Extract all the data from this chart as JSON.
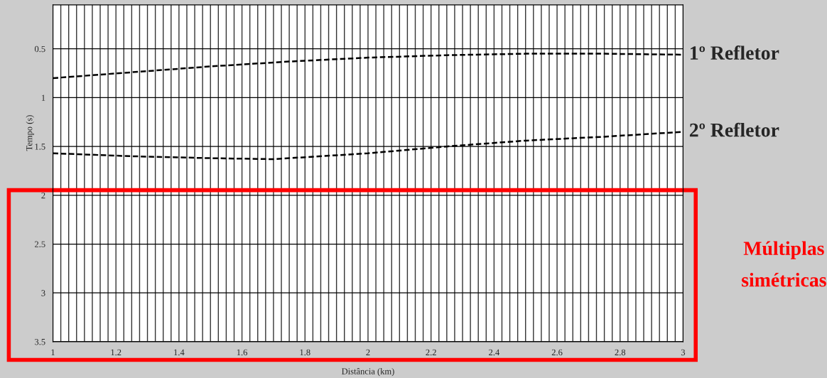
{
  "chart_data": {
    "type": "line",
    "xlabel": "Distância (km)",
    "ylabel": "Tempo (s)",
    "series": [
      {
        "color": "#000000",
        "x": [
          1,
          1.25,
          1.5,
          1.75,
          2,
          2.25,
          2.5,
          2.75,
          3
        ],
        "values": [
          0.8,
          0.74,
          0.68,
          0.63,
          0.59,
          0.565,
          0.55,
          0.55,
          0.56
        ]
      },
      {
        "color": "#000000",
        "x": [
          1,
          1.25,
          1.5,
          1.7,
          2,
          2.25,
          2.5,
          2.75,
          3
        ],
        "values": [
          1.57,
          1.6,
          1.62,
          1.63,
          1.57,
          1.5,
          1.44,
          1.4,
          1.35
        ]
      }
    ],
    "line_style": "dashed",
    "xlim": [
      1,
      3
    ],
    "ylim": [
      3.5,
      0.05
    ],
    "yticks": [
      0.5,
      1,
      1.5,
      2,
      2.5,
      3,
      3.5
    ],
    "xticks": [
      1,
      {
        "value": 1.025,
        "label": null
      },
      {
        "value": 1.05,
        "label": null
      },
      {
        "value": 1.075,
        "label": null
      },
      {
        "value": 1.1,
        "label": null
      },
      {
        "value": 1.125,
        "label": null
      },
      {
        "value": 1.15,
        "label": null
      },
      {
        "value": 1.175,
        "label": null
      },
      1.2,
      {
        "value": 1.225,
        "label": null
      },
      {
        "value": 1.25,
        "label": null
      },
      {
        "value": 1.275,
        "label": null
      },
      {
        "value": 1.3,
        "label": null
      },
      {
        "value": 1.325,
        "label": null
      },
      {
        "value": 1.35,
        "label": null
      },
      {
        "value": 1.375,
        "label": null
      },
      1.4,
      {
        "value": 1.425,
        "label": null
      },
      {
        "value": 1.45,
        "label": null
      },
      {
        "value": 1.475,
        "label": null
      },
      {
        "value": 1.5,
        "label": null
      },
      {
        "value": 1.525,
        "label": null
      },
      {
        "value": 1.55,
        "label": null
      },
      {
        "value": 1.575,
        "label": null
      },
      1.6,
      {
        "value": 1.625,
        "label": null
      },
      {
        "value": 1.65,
        "label": null
      },
      {
        "value": 1.675,
        "label": null
      },
      {
        "value": 1.7,
        "label": null
      },
      {
        "value": 1.725,
        "label": null
      },
      {
        "value": 1.75,
        "label": null
      },
      {
        "value": 1.775,
        "label": null
      },
      1.8,
      {
        "value": 1.825,
        "label": null
      },
      {
        "value": 1.85,
        "label": null
      },
      {
        "value": 1.875,
        "label": null
      },
      {
        "value": 1.9,
        "label": null
      },
      {
        "value": 1.925,
        "label": null
      },
      {
        "value": 1.95,
        "label": null
      },
      {
        "value": 1.975,
        "label": null
      },
      2,
      {
        "value": 2.025,
        "label": null
      },
      {
        "value": 2.05,
        "label": null
      },
      {
        "value": 2.075,
        "label": null
      },
      {
        "value": 2.1,
        "label": null
      },
      {
        "value": 2.125,
        "label": null
      },
      {
        "value": 2.15,
        "label": null
      },
      {
        "value": 2.175,
        "label": null
      },
      2.2,
      {
        "value": 2.225,
        "label": null
      },
      {
        "value": 2.25,
        "label": null
      },
      {
        "value": 2.275,
        "label": null
      },
      {
        "value": 2.3,
        "label": null
      },
      {
        "value": 2.325,
        "label": null
      },
      {
        "value": 2.35,
        "label": null
      },
      {
        "value": 2.375,
        "label": null
      },
      2.4,
      {
        "value": 2.425,
        "label": null
      },
      {
        "value": 2.45,
        "label": null
      },
      {
        "value": 2.475,
        "label": null
      },
      {
        "value": 2.5,
        "label": null
      },
      {
        "value": 2.525,
        "label": null
      },
      {
        "value": 2.55,
        "label": null
      },
      {
        "value": 2.575,
        "label": null
      },
      2.6,
      {
        "value": 2.625,
        "label": null
      },
      {
        "value": 2.65,
        "label": null
      },
      {
        "value": 2.675,
        "label": null
      },
      {
        "value": 2.7,
        "label": null
      },
      {
        "value": 2.725,
        "label": null
      },
      {
        "value": 2.75,
        "label": null
      },
      {
        "value": 2.775,
        "label": null
      },
      2.8,
      {
        "value": 2.825,
        "label": null
      },
      {
        "value": 2.85,
        "label": null
      },
      {
        "value": 2.875,
        "label": null
      },
      {
        "value": 2.9,
        "label": null
      },
      {
        "value": 2.925,
        "label": null
      },
      {
        "value": 2.95,
        "label": null
      },
      {
        "value": 2.975,
        "label": null
      },
      3
    ],
    "grid": true,
    "annotations": [
      {
        "text": "1º Refletor",
        "x": 3,
        "y": 0.56
      },
      {
        "text": "2º Refletor",
        "x": 3,
        "y": 1.35
      },
      "Múltiplas simétricas"
    ]
  }
}
